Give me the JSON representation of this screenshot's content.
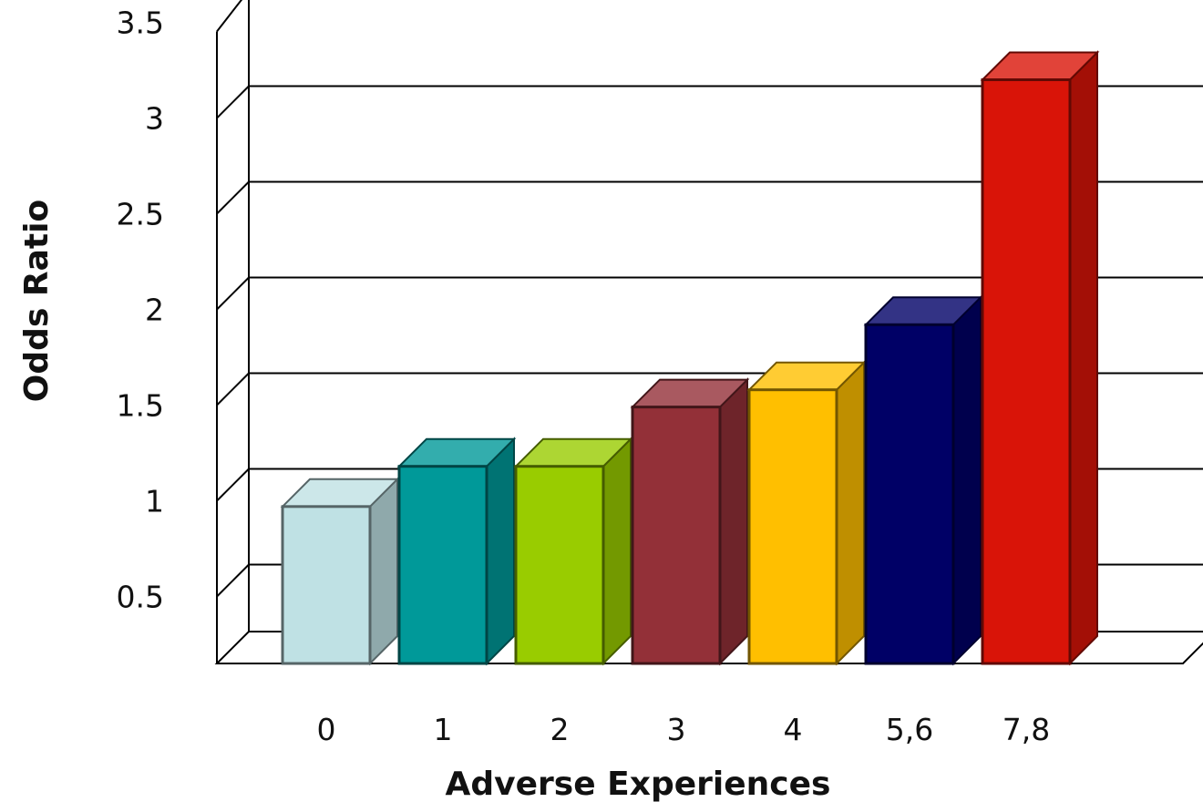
{
  "chart_data": {
    "type": "bar",
    "categories": [
      "0",
      "1",
      "2",
      "3",
      "4",
      "5,6",
      "7,8"
    ],
    "values": [
      0.97,
      1.18,
      1.18,
      1.49,
      1.58,
      1.92,
      3.2
    ],
    "colors": [
      "#bfe1e4",
      "#009999",
      "#99cc00",
      "#933038",
      "#ffbf00",
      "#000066",
      "#d91408"
    ],
    "xlabel": "Adverse Experiences",
    "ylabel": "Odds Ratio",
    "yticks": [
      "0.5",
      "1",
      "1.5",
      "2",
      "2.5",
      "3",
      "3.5"
    ],
    "ytick_values": [
      0.5,
      1,
      1.5,
      2,
      2.5,
      3,
      3.5
    ],
    "highlight_tick": "3",
    "highlight_color": "#cc2200",
    "ylim": [
      0.15,
      3.5
    ],
    "grid": true,
    "style": "3d-bar"
  }
}
